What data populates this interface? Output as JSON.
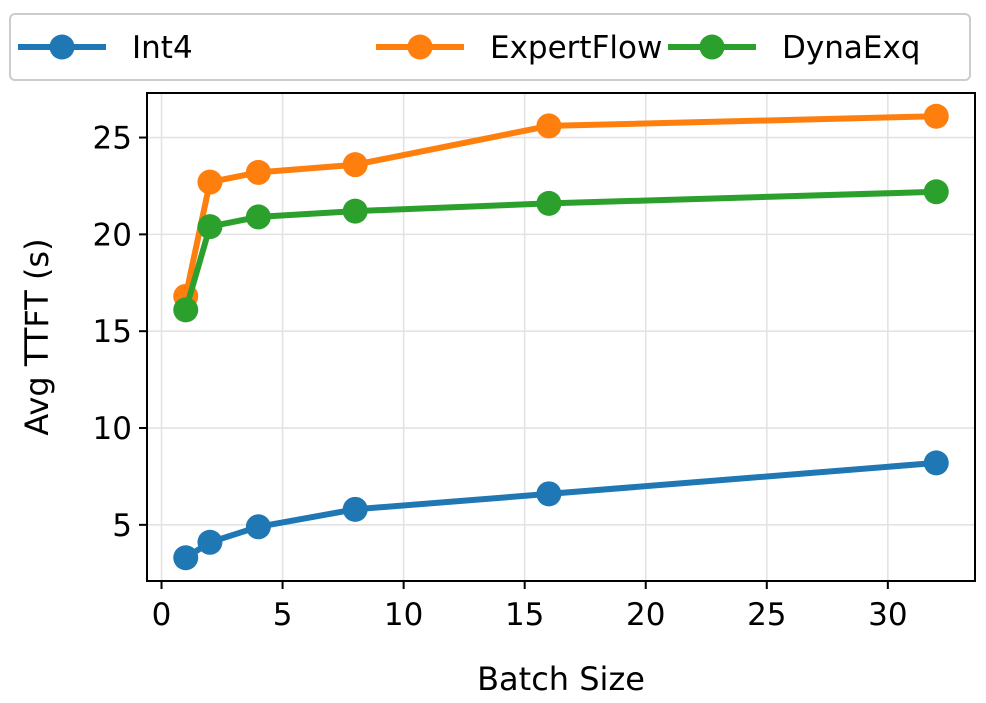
{
  "chart_data": {
    "type": "line",
    "xlabel": "Batch Size",
    "ylabel": "Avg TTFT (s)",
    "xlim": [
      -0.6,
      33.6
    ],
    "ylim": [
      2.1,
      27.3
    ],
    "xticks": [
      0,
      5,
      10,
      15,
      20,
      25,
      30
    ],
    "yticks": [
      5,
      10,
      15,
      20,
      25
    ],
    "grid": true,
    "legend_position": "top",
    "x": [
      1,
      2,
      4,
      8,
      16,
      32
    ],
    "series": [
      {
        "name": "Int4",
        "color": "#1f77b4",
        "values": [
          3.3,
          4.1,
          4.9,
          5.8,
          6.6,
          8.2
        ]
      },
      {
        "name": "ExpertFlow",
        "color": "#ff7f0e",
        "values": [
          16.8,
          22.7,
          23.2,
          23.6,
          25.6,
          26.1
        ]
      },
      {
        "name": "DynaExq",
        "color": "#2ca02c",
        "values": [
          16.1,
          20.4,
          20.9,
          21.2,
          21.6,
          22.2
        ]
      }
    ]
  }
}
